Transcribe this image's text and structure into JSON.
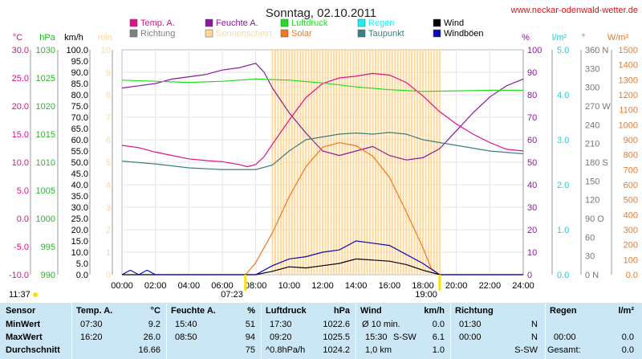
{
  "header": {
    "title": "Sonntag, 02.10.2011",
    "site": "www.neckar-odenwald-wetter.de"
  },
  "chart_data": {
    "type": "line",
    "title": "Sonntag, 02.10.2011",
    "legend": [
      {
        "label": "Temp. A.",
        "color": "#e0108a"
      },
      {
        "label": "Richtung",
        "color": "#808080"
      },
      {
        "label": "Feuchte A.",
        "color": "#8a1a9a"
      },
      {
        "label": "Sonnenschein",
        "color": "#ffd89a"
      },
      {
        "label": "Luftdruck",
        "color": "#22dd22"
      },
      {
        "label": "Solar",
        "color": "#f07820"
      },
      {
        "label": "Regen",
        "color": "#19f0f0"
      },
      {
        "label": "Taupunkt",
        "color": "#3a8080"
      },
      {
        "label": "Wind",
        "color": "#000000"
      },
      {
        "label": "Windböen",
        "color": "#0a0ab0"
      }
    ],
    "axes": {
      "temp_c": {
        "label": "°C",
        "min": -10,
        "max": 30,
        "ticks": [
          "30.0",
          "25.0",
          "20.0",
          "15.0",
          "10.0",
          "5.0",
          "0.0",
          "-5.0",
          "-10.0"
        ]
      },
      "pressure_hpa": {
        "label": "hPa",
        "min": 990,
        "max": 1030,
        "ticks": [
          "1030",
          "1025",
          "1020",
          "1015",
          "1010",
          "1005",
          "1000",
          "995",
          "990"
        ]
      },
      "wind_kmh": {
        "label": "km/h",
        "min": 0,
        "max": 100,
        "ticks": [
          "100.0",
          "95.0",
          "90.0",
          "85.0",
          "80.0",
          "75.0",
          "70.0",
          "65.0",
          "60.0",
          "55.0",
          "50.0",
          "45.0",
          "40.0",
          "35.0",
          "30.0",
          "25.0",
          "20.0",
          "15.0",
          "10.0",
          "5.0",
          "0.0"
        ]
      },
      "sun_min": {
        "label": "min",
        "min": 0,
        "max": 10,
        "ticks": [
          "10",
          "9",
          "8",
          "7",
          "6",
          "5",
          "4",
          "3",
          "2",
          "1",
          "0"
        ]
      },
      "humidity_pct": {
        "label": "%",
        "min": 0,
        "max": 100,
        "ticks": [
          "100",
          "90",
          "80",
          "70",
          "60",
          "50",
          "40",
          "30",
          "20",
          "10",
          "0"
        ]
      },
      "rain_lm2": {
        "label": "l/m²",
        "min": 0,
        "max": 5,
        "ticks": [
          "5.0",
          "4.0",
          "3.0",
          "2.0",
          "1.0",
          "0.0"
        ]
      },
      "direction_deg": {
        "label": "°",
        "min": 0,
        "max": 360,
        "ticks": [
          "360 N",
          "330",
          "300",
          "270 W",
          "240",
          "210",
          "180 S",
          "150",
          "120",
          "90 O",
          "60",
          "30",
          "0 N"
        ]
      },
      "solar_wm2": {
        "label": "W/m²",
        "min": 0,
        "max": 1500,
        "ticks": [
          "1500",
          "1400",
          "1300",
          "1200",
          "1100",
          "1000",
          "900",
          "800",
          "700",
          "600",
          "500",
          "400",
          "300",
          "200",
          "100",
          "0.0"
        ]
      },
      "x_hours": [
        "00:00",
        "02:00",
        "04:00",
        "06:00",
        "08:00",
        "10:00",
        "12:00",
        "14:00",
        "16:00",
        "18:00",
        "20:00",
        "22:00",
        "24:00"
      ]
    },
    "markers": {
      "sunrise": "07:23",
      "sunset": "19:00",
      "daylight_left": "11:37"
    },
    "series": [
      {
        "name": "Temp. A.",
        "axis": "temp_c",
        "x": [
          0,
          1,
          2,
          3,
          4,
          5,
          6,
          7,
          7.5,
          8,
          8.5,
          9,
          10,
          11,
          12,
          13,
          14,
          15,
          16,
          17,
          18,
          19,
          20,
          21,
          22,
          23,
          24
        ],
        "values": [
          13.0,
          12.6,
          11.8,
          11.2,
          10.6,
          10.3,
          10.1,
          9.6,
          9.2,
          9.6,
          11.0,
          13.2,
          17.5,
          21.5,
          24.0,
          25.0,
          25.3,
          25.8,
          25.5,
          24.2,
          21.8,
          19.0,
          16.8,
          15.0,
          13.5,
          12.3,
          12.0
        ]
      },
      {
        "name": "Feuchte A.",
        "axis": "humidity_pct",
        "x": [
          0,
          1,
          2,
          3,
          4,
          5,
          6,
          7,
          8,
          8.5,
          9,
          10,
          11,
          12,
          13,
          14,
          15,
          16,
          17,
          18,
          19,
          20,
          21,
          22,
          23,
          24
        ],
        "values": [
          83,
          84,
          85,
          87,
          88,
          89,
          91,
          92,
          94,
          90,
          83,
          72,
          63,
          55,
          53,
          55,
          57,
          53,
          51,
          52,
          56,
          64,
          72,
          79,
          84,
          87
        ]
      },
      {
        "name": "Luftdruck",
        "axis": "pressure_hpa",
        "x": [
          0,
          2,
          4,
          6,
          8,
          10,
          12,
          14,
          16,
          18,
          20,
          22,
          24
        ],
        "values": [
          1024.6,
          1024.4,
          1024.2,
          1024.4,
          1024.8,
          1024.6,
          1024.1,
          1023.4,
          1022.9,
          1022.6,
          1022.7,
          1022.8,
          1022.8
        ]
      },
      {
        "name": "Taupunkt",
        "axis": "temp_c",
        "x": [
          0,
          2,
          4,
          6,
          8,
          9,
          10,
          11,
          12,
          13,
          14,
          15,
          16,
          17,
          18,
          19,
          20,
          22,
          24
        ],
        "values": [
          10.2,
          9.7,
          9.0,
          8.7,
          8.7,
          9.5,
          12.0,
          14.0,
          14.5,
          15.0,
          15.2,
          15.0,
          15.3,
          15.0,
          14.0,
          13.5,
          13.0,
          12.0,
          11.5
        ]
      },
      {
        "name": "Solar",
        "axis": "solar_wm2",
        "x": [
          7.4,
          8,
          9,
          10,
          11,
          12,
          13,
          14,
          15,
          16,
          17,
          18,
          18.5,
          19
        ],
        "values": [
          0,
          80,
          280,
          520,
          720,
          850,
          880,
          860,
          790,
          650,
          420,
          180,
          40,
          0
        ]
      },
      {
        "name": "Wind",
        "axis": "wind_kmh",
        "x": [
          0,
          8,
          9,
          10,
          11,
          12,
          13,
          14,
          15,
          16,
          17,
          18,
          19,
          24
        ],
        "values": [
          0,
          0,
          1.5,
          3.5,
          3,
          4,
          5,
          7,
          6.5,
          6,
          4.5,
          2,
          0,
          0
        ]
      },
      {
        "name": "Windböen",
        "axis": "wind_kmh",
        "x": [
          0,
          0.5,
          1,
          1.5,
          2,
          2.5,
          8,
          9,
          10,
          11,
          12,
          13,
          14,
          15,
          16,
          17,
          18,
          19,
          20,
          22,
          24
        ],
        "values": [
          0,
          2,
          0,
          2,
          0,
          0,
          0,
          4,
          7,
          8,
          10,
          11,
          15,
          14,
          13,
          9,
          5,
          0,
          0,
          0,
          0
        ]
      },
      {
        "name": "Sonnenschein",
        "axis": "sun_min",
        "x": [
          9,
          10,
          11,
          12,
          13,
          14,
          15,
          16,
          17,
          18
        ],
        "values": [
          10,
          10,
          10,
          10,
          10,
          10,
          10,
          10,
          10,
          10
        ]
      }
    ]
  },
  "stats": {
    "headers": {
      "sensor": "Sensor",
      "temp": "Temp. A.",
      "temp_unit": "°C",
      "hum": "Feuchte A.",
      "hum_unit": "%",
      "press": "Luftdruck",
      "press_unit": "hPa",
      "wind": "Wind",
      "wind_unit": "km/h",
      "dir": "Richtung",
      "rain": "Regen",
      "rain_unit": "l/m²"
    },
    "rows": [
      {
        "label": "MinWert",
        "temp_time": "07:30",
        "temp_val": "9.2",
        "hum_time": "15:40",
        "hum_val": "51",
        "press_time": "17:30",
        "press_val": "1022.6",
        "wind_time": "Ø 10 min.",
        "wind_val": "0.0",
        "dir_time": "01:30",
        "dir_val": "N",
        "rain_time": "",
        "rain_val": ""
      },
      {
        "label": "MaxWert",
        "temp_time": "16:20",
        "temp_val": "26.0",
        "hum_time": "08:50",
        "hum_val": "94",
        "press_time": "09:20",
        "press_val": "1025.5",
        "wind_time": "15:30",
        "wind_dir": "S-SW",
        "wind_val": "6.1",
        "dir_time": "00:00",
        "dir_val": "N",
        "rain_time": "00:00",
        "rain_val": "0.0"
      },
      {
        "label": "Durchschnitt",
        "temp_time": "",
        "temp_val": "16.66",
        "hum_time": "",
        "hum_val": "75",
        "press_time": "^0.8hPa/h",
        "press_val": "1024.2",
        "wind_time": "1,0 km",
        "wind_val": "1.0",
        "dir_time": "",
        "dir_val": "S-SW",
        "rain_time": "Gesamt:",
        "rain_val": "0.0"
      }
    ]
  }
}
